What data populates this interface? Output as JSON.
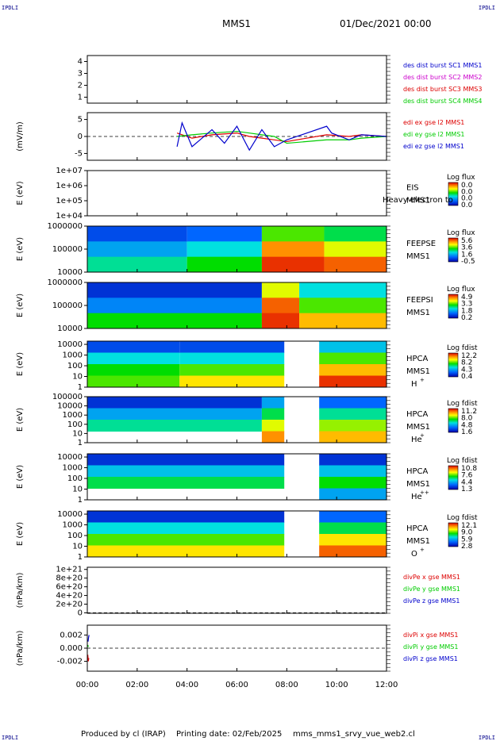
{
  "header": {
    "corner_tag": "IPDLI",
    "spacecraft": "MMS1",
    "date": "01/Dec/2021 00:00"
  },
  "footer": {
    "produced_by": "Produced by cl (IRAP)",
    "printing_date": "Printing date: 02/Feb/2025",
    "script_name": "mms_mms1_srvy_vue_web2.cl"
  },
  "time_axis": {
    "ticks": [
      "00:00",
      "02:00",
      "04:00",
      "06:00",
      "08:00",
      "10:00",
      "12:00"
    ],
    "range_hours": [
      0,
      12
    ]
  },
  "colors": {
    "blue": "#0000cc",
    "magenta": "#cc00cc",
    "red": "#dd0000",
    "green": "#00cc00"
  },
  "chart_data": [
    {
      "type": "line",
      "ylim": [
        0.5,
        4.5
      ],
      "y_ticks": [
        "1",
        "2",
        "3",
        "4"
      ],
      "y_tick_values": [
        1,
        2,
        3,
        4
      ],
      "series": [
        {
          "name": "des dist burst SC1 MMS1",
          "color": "#0000cc",
          "values": []
        },
        {
          "name": "des dist burst SC2 MMS2",
          "color": "#cc00cc",
          "values": []
        },
        {
          "name": "des dist burst SC3 MMS3",
          "color": "#dd0000",
          "values": []
        },
        {
          "name": "des dist burst SC4 MMS4",
          "color": "#00cc00",
          "values": []
        }
      ]
    },
    {
      "type": "line",
      "ylabel": "(mV/m)",
      "ylim": [
        -7,
        7
      ],
      "y_ticks": [
        "5",
        "0",
        "-5"
      ],
      "y_tick_values": [
        5,
        0,
        -5
      ],
      "zero_line": true,
      "series": [
        {
          "name": "edi ex gse l2 MMS1",
          "color": "#dd0000",
          "x": [
            3.6,
            4.2,
            5,
            6,
            6.5,
            7,
            7.5,
            8,
            9.6,
            10.5,
            11,
            12
          ],
          "values": [
            1,
            -0.5,
            0.5,
            1,
            0,
            -0.5,
            -1,
            -1.5,
            0.5,
            0,
            0.5,
            0
          ]
        },
        {
          "name": "edi ey gse l2 MMS1",
          "color": "#00cc00",
          "x": [
            3.6,
            4.2,
            5,
            6,
            6.5,
            7,
            7.5,
            8,
            9.6,
            10.5,
            11,
            12
          ],
          "values": [
            0,
            0.5,
            1,
            1.5,
            1,
            0.5,
            0,
            -2,
            -1,
            -1,
            -0.5,
            0
          ]
        },
        {
          "name": "edi ez gse l2 MMS1",
          "color": "#0000cc",
          "x": [
            3.6,
            3.8,
            4.2,
            5,
            5.5,
            6,
            6.5,
            7,
            7.5,
            8,
            9.6,
            9.8,
            10.5,
            11,
            12
          ],
          "values": [
            -3,
            4,
            -3,
            2,
            -2,
            3,
            -4,
            2,
            -3,
            -1,
            3,
            1,
            -1,
            0.5,
            0
          ]
        }
      ]
    },
    {
      "type": "heatmap",
      "ylabel": "E (eV)",
      "yscale": "log",
      "y_ticks": [
        "1e+07",
        "1e+06",
        "1e+05",
        "1e+04"
      ],
      "y_tick_values": [
        7,
        6,
        5,
        4
      ],
      "ylim": [
        4,
        7
      ],
      "instrument": "EIS",
      "overlay_text": "Heavy electron to",
      "spacecraft": "MMS1",
      "colorbar": {
        "title": "Log flux",
        "ticks": [
          "0.0",
          "0.0",
          "0.0",
          "0.0"
        ]
      },
      "segments": []
    },
    {
      "type": "heatmap",
      "ylabel": "E (eV)",
      "yscale": "log",
      "y_ticks": [
        "1000000",
        "100000",
        "10000"
      ],
      "y_tick_values": [
        6,
        5,
        4
      ],
      "ylim": [
        4,
        6
      ],
      "instrument": "FEEPSE",
      "spacecraft": "MMS1",
      "colorbar": {
        "title": "Log flux",
        "ticks": [
          "5.6",
          "3.6",
          "1.6",
          "-0.5"
        ]
      },
      "segments": [
        {
          "t": [
            0,
            4.0
          ],
          "levels": [
            0.15,
            0.3,
            0.45
          ]
        },
        {
          "t": [
            4.0,
            7.0
          ],
          "levels": [
            0.2,
            0.4,
            0.55
          ]
        },
        {
          "t": [
            7.0,
            9.5
          ],
          "levels": [
            0.6,
            0.85,
            0.95
          ]
        },
        {
          "t": [
            9.5,
            12
          ],
          "levels": [
            0.5,
            0.7,
            0.9
          ]
        }
      ]
    },
    {
      "type": "heatmap",
      "ylabel": "E (eV)",
      "yscale": "log",
      "y_ticks": [
        "1000000",
        "100000",
        "10000"
      ],
      "y_tick_values": [
        6,
        5,
        4
      ],
      "ylim": [
        4,
        6
      ],
      "instrument": "FEEPSI",
      "spacecraft": "MMS1",
      "colorbar": {
        "title": "Log flux",
        "ticks": [
          "4.9",
          "3.3",
          "1.8",
          "0.2"
        ]
      },
      "segments": [
        {
          "t": [
            0,
            7.0
          ],
          "levels": [
            0.1,
            0.25,
            0.55
          ]
        },
        {
          "t": [
            7.0,
            8.5
          ],
          "levels": [
            0.7,
            0.9,
            0.95
          ]
        },
        {
          "t": [
            8.5,
            12
          ],
          "levels": [
            0.4,
            0.6,
            0.8
          ]
        }
      ]
    },
    {
      "type": "heatmap",
      "ylabel": "E (eV)",
      "yscale": "log",
      "y_ticks": [
        "10000",
        "1000",
        "100",
        "10",
        "1"
      ],
      "y_tick_values": [
        4,
        3,
        2,
        1,
        0
      ],
      "ylim": [
        0,
        4.3
      ],
      "instrument": "HPCA",
      "spacecraft": "MMS1",
      "species": "H",
      "charge": "+",
      "colorbar": {
        "title": "Log fdist",
        "ticks": [
          "12.2",
          "8.2",
          "4.3",
          "0.4"
        ]
      },
      "gap_hours": [
        7.9,
        9.3
      ],
      "segments": [
        {
          "t": [
            0,
            3.7
          ],
          "levels": [
            0.15,
            0.4,
            0.55,
            0.6
          ]
        },
        {
          "t": [
            3.7,
            7.9
          ],
          "levels": [
            0.15,
            0.4,
            0.6,
            0.75
          ]
        },
        {
          "t": [
            9.3,
            12
          ],
          "levels": [
            0.35,
            0.6,
            0.8,
            0.95
          ]
        }
      ]
    },
    {
      "type": "heatmap",
      "ylabel": "E (eV)",
      "yscale": "log",
      "y_ticks": [
        "100000",
        "10000",
        "1000",
        "100",
        "10",
        "1"
      ],
      "y_tick_values": [
        5,
        4,
        3,
        2,
        1,
        0
      ],
      "ylim": [
        0,
        5
      ],
      "instrument": "HPCA",
      "spacecraft": "MMS1",
      "species": "He",
      "charge": "+",
      "colorbar": {
        "title": "Log fdist",
        "ticks": [
          "11.2",
          "8.0",
          "4.8",
          "1.6"
        ]
      },
      "gap_hours": [
        7.9,
        9.3
      ],
      "segments": [
        {
          "t": [
            0,
            7.0
          ],
          "levels": [
            0.1,
            0.3,
            0.45,
            0.0
          ]
        },
        {
          "t": [
            7.0,
            7.9
          ],
          "levels": [
            0.3,
            0.5,
            0.7,
            0.85
          ]
        },
        {
          "t": [
            9.3,
            12
          ],
          "levels": [
            0.2,
            0.45,
            0.65,
            0.8
          ]
        }
      ]
    },
    {
      "type": "heatmap",
      "ylabel": "E (eV)",
      "yscale": "log",
      "y_ticks": [
        "10000",
        "1000",
        "100",
        "10",
        "1"
      ],
      "y_tick_values": [
        4,
        3,
        2,
        1,
        0
      ],
      "ylim": [
        0,
        4.3
      ],
      "instrument": "HPCA",
      "spacecraft": "MMS1",
      "species": "He",
      "charge": "++",
      "colorbar": {
        "title": "Log fdist",
        "ticks": [
          "10.8",
          "7.6",
          "4.4",
          "1.3"
        ]
      },
      "gap_hours": [
        7.9,
        9.3
      ],
      "segments": [
        {
          "t": [
            0,
            7.9
          ],
          "levels": [
            0.1,
            0.35,
            0.5,
            0.0
          ]
        },
        {
          "t": [
            9.3,
            12
          ],
          "levels": [
            0.1,
            0.35,
            0.55,
            0.3
          ]
        }
      ]
    },
    {
      "type": "heatmap",
      "ylabel": "E (eV)",
      "yscale": "log",
      "y_ticks": [
        "10000",
        "1000",
        "100",
        "10",
        "1"
      ],
      "y_tick_values": [
        4,
        3,
        2,
        1,
        0
      ],
      "ylim": [
        0,
        4.3
      ],
      "instrument": "HPCA",
      "spacecraft": "MMS1",
      "species": "O",
      "charge": "+",
      "colorbar": {
        "title": "Log fdist",
        "ticks": [
          "12.1",
          "9.0",
          "5.9",
          "2.8"
        ]
      },
      "gap_hours": [
        7.9,
        9.3
      ],
      "segments": [
        {
          "t": [
            0,
            7.9
          ],
          "levels": [
            0.1,
            0.4,
            0.6,
            0.75
          ]
        },
        {
          "t": [
            9.3,
            12
          ],
          "levels": [
            0.2,
            0.5,
            0.75,
            0.9
          ]
        }
      ]
    },
    {
      "type": "line",
      "ylabel": "(nPa/km)",
      "ylim": [
        -1e+19,
        1.05e+21
      ],
      "y_ticks": [
        "1e+21",
        "8e+20",
        "6e+20",
        "4e+20",
        "2e+20",
        "0"
      ],
      "y_tick_values": [
        1e+21,
        8e+20,
        6e+20,
        4e+20,
        2e+20,
        0
      ],
      "zero_line": true,
      "series": [
        {
          "name": "divPe x gse MMS1",
          "color": "#dd0000",
          "values": []
        },
        {
          "name": "divPe y gse MMS1",
          "color": "#00cc00",
          "values": []
        },
        {
          "name": "divPe z gse MMS1",
          "color": "#0000cc",
          "values": []
        }
      ]
    },
    {
      "type": "line",
      "ylabel": "(nPa/km)",
      "ylim": [
        -0.0035,
        0.0035
      ],
      "y_ticks": [
        "0.002",
        "0.000",
        "-0.002"
      ],
      "y_tick_values": [
        0.002,
        0,
        -0.002
      ],
      "zero_line": true,
      "series": [
        {
          "name": "divPi x gse MMS1",
          "color": "#dd0000",
          "x": [
            0.02,
            0.04,
            0.06
          ],
          "values": [
            -0.001,
            -0.002,
            -0.0015
          ]
        },
        {
          "name": "divPi y gse MMS1",
          "color": "#00cc00",
          "x": [
            0.02,
            0.04
          ],
          "values": [
            0.0005,
            0.0002
          ]
        },
        {
          "name": "divPi z gse MMS1",
          "color": "#0000cc",
          "x": [
            0.03,
            0.05,
            0.07
          ],
          "values": [
            0.001,
            0.0016,
            0.002
          ]
        }
      ]
    }
  ]
}
